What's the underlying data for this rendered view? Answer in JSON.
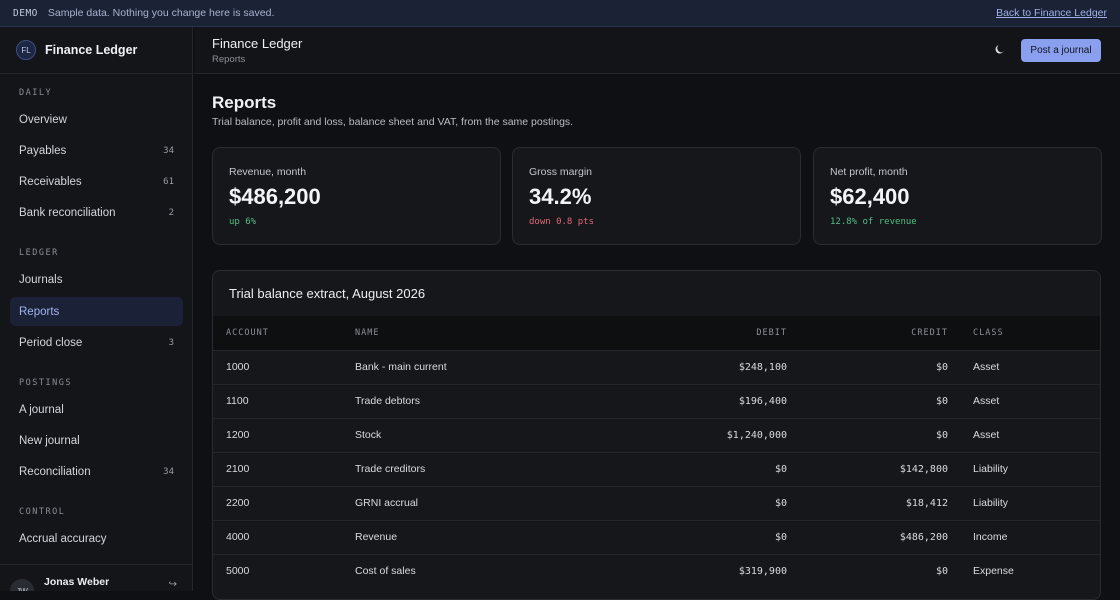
{
  "banner": {
    "tag": "DEMO",
    "message": "Sample data. Nothing you change here is saved.",
    "back_link": "Back to Finance Ledger"
  },
  "sidebar": {
    "logo": "FL",
    "app_name": "Finance Ledger",
    "sections": [
      {
        "title": "DAILY",
        "items": [
          {
            "label": "Overview",
            "count": ""
          },
          {
            "label": "Payables",
            "count": "34"
          },
          {
            "label": "Receivables",
            "count": "61"
          },
          {
            "label": "Bank reconciliation",
            "count": "2"
          }
        ]
      },
      {
        "title": "LEDGER",
        "items": [
          {
            "label": "Journals",
            "count": ""
          },
          {
            "label": "Reports",
            "count": ""
          },
          {
            "label": "Period close",
            "count": "3"
          }
        ]
      },
      {
        "title": "POSTINGS",
        "items": [
          {
            "label": "A journal",
            "count": ""
          },
          {
            "label": "New journal",
            "count": ""
          },
          {
            "label": "Reconciliation",
            "count": "34"
          }
        ]
      },
      {
        "title": "CONTROL",
        "items": [
          {
            "label": "Accrual accuracy",
            "count": ""
          }
        ]
      }
    ],
    "active_item": "Reports",
    "user": {
      "initials": "JW",
      "name": "Jonas Weber",
      "signout_icon": "logout-icon"
    }
  },
  "topbar": {
    "title": "Finance Ledger",
    "breadcrumb": "Reports",
    "theme_icon": "moon-icon",
    "post_button": "Post a journal"
  },
  "page": {
    "title": "Reports",
    "subtitle": "Trial balance, profit and loss, balance sheet and VAT, from the same postings."
  },
  "kpis": [
    {
      "label": "Revenue, month",
      "value": "$486,200",
      "delta": "up 6%",
      "trend": "up"
    },
    {
      "label": "Gross margin",
      "value": "34.2%",
      "delta": "down 0.8 pts",
      "trend": "down"
    },
    {
      "label": "Net profit, month",
      "value": "$62,400",
      "delta": "12.8% of revenue",
      "trend": "up"
    }
  ],
  "trial_balance": {
    "title": "Trial balance extract, August 2026",
    "columns": [
      "ACCOUNT",
      "NAME",
      "DEBIT",
      "CREDIT",
      "CLASS"
    ],
    "rows": [
      [
        "1000",
        "Bank - main current",
        "$248,100",
        "$0",
        "Asset"
      ],
      [
        "1100",
        "Trade debtors",
        "$196,400",
        "$0",
        "Asset"
      ],
      [
        "1200",
        "Stock",
        "$1,240,000",
        "$0",
        "Asset"
      ],
      [
        "2100",
        "Trade creditors",
        "$0",
        "$142,800",
        "Liability"
      ],
      [
        "2200",
        "GRNI accrual",
        "$0",
        "$18,412",
        "Liability"
      ],
      [
        "4000",
        "Revenue",
        "$0",
        "$486,200",
        "Income"
      ],
      [
        "5000",
        "Cost of sales",
        "$319,900",
        "$0",
        "Expense"
      ]
    ]
  },
  "colors": {
    "accent": "#8aa0ef",
    "positive": "#4fbf86",
    "negative": "#e0687a",
    "background": "#0f1013"
  }
}
